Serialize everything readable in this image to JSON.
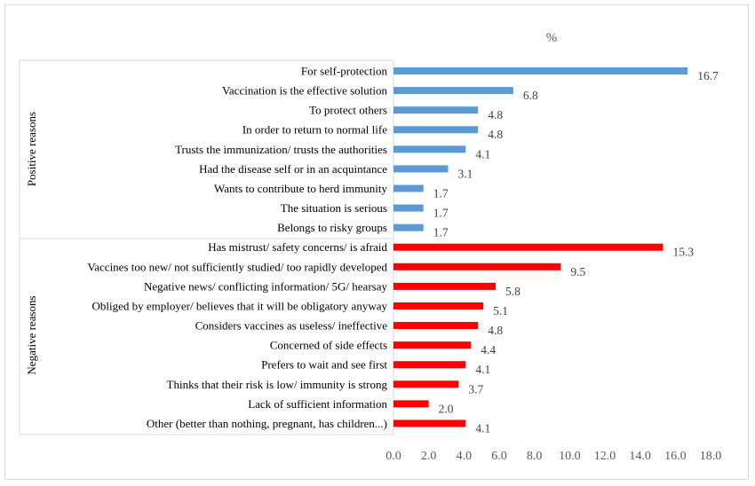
{
  "chart_data": {
    "type": "bar",
    "orientation": "horizontal",
    "unit_label": "%",
    "xlim": [
      0,
      18
    ],
    "x_ticks": [
      "0.0",
      "2.0",
      "4.0",
      "6.0",
      "8.0",
      "10.0",
      "12.0",
      "14.0",
      "16.0",
      "18.0"
    ],
    "grid": false,
    "groups": [
      {
        "name": "Positive reasons",
        "color": "#5b9bd5",
        "items": [
          {
            "label": "For self-protection",
            "value": 16.7,
            "value_label": "16.7"
          },
          {
            "label": "Vaccination is the effective solution",
            "value": 6.8,
            "value_label": "6.8"
          },
          {
            "label": "To protect others",
            "value": 4.8,
            "value_label": "4.8"
          },
          {
            "label": "In order to return to normal life",
            "value": 4.8,
            "value_label": "4.8"
          },
          {
            "label": "Trusts the immunization/ trusts the authorities",
            "value": 4.1,
            "value_label": "4.1"
          },
          {
            "label": "Had the disease self or in an acquintance",
            "value": 3.1,
            "value_label": "3.1"
          },
          {
            "label": "Wants to contribute to herd immunity",
            "value": 1.7,
            "value_label": "1.7"
          },
          {
            "label": "The situation is serious",
            "value": 1.7,
            "value_label": "1.7"
          },
          {
            "label": "Belongs to risky groups",
            "value": 1.7,
            "value_label": "1.7"
          }
        ]
      },
      {
        "name": "Negative reasons",
        "color": "#ff0000",
        "items": [
          {
            "label": "Has mistrust/ safety concerns/ is afraid",
            "value": 15.3,
            "value_label": "15.3"
          },
          {
            "label": "Vaccines too new/ not sufficiently studied/ too rapidly developed",
            "value": 9.5,
            "value_label": "9.5"
          },
          {
            "label": "Negative news/ conflicting information/ 5G/ hearsay",
            "value": 5.8,
            "value_label": "5.8"
          },
          {
            "label": "Obliged by employer/ believes that it will be obligatory anyway",
            "value": 5.1,
            "value_label": "5.1"
          },
          {
            "label": "Considers vaccines as useless/ ineffective",
            "value": 4.8,
            "value_label": "4.8"
          },
          {
            "label": "Concerned of side effects",
            "value": 4.4,
            "value_label": "4.4"
          },
          {
            "label": "Prefers to wait and see first",
            "value": 4.1,
            "value_label": "4.1"
          },
          {
            "label": "Thinks that their risk is low/ immunity is strong",
            "value": 3.7,
            "value_label": "3.7"
          },
          {
            "label": "Lack of sufficient information",
            "value": 2.0,
            "value_label": "2.0"
          },
          {
            "label": "Other (better than nothing, pregnant, has children...)",
            "value": 4.1,
            "value_label": "4.1"
          }
        ]
      }
    ]
  }
}
